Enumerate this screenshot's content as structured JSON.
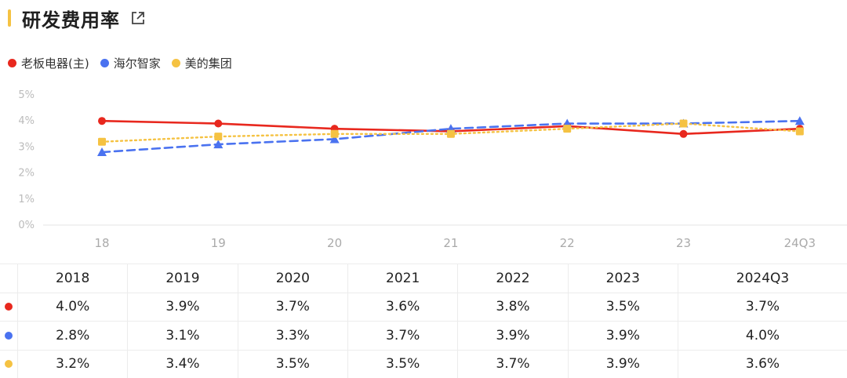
{
  "header": {
    "title": "研发费用率",
    "external_icon": "external-link-icon"
  },
  "legend": [
    {
      "label": "老板电器(主)",
      "color": "#e8281e"
    },
    {
      "label": "海尔智家",
      "color": "#4a72f0"
    },
    {
      "label": "美的集团",
      "color": "#f5c242"
    }
  ],
  "chart_data": {
    "type": "line",
    "x": [
      "18",
      "19",
      "20",
      "21",
      "22",
      "23",
      "24Q3"
    ],
    "y_ticks": [
      "0%",
      "1%",
      "2%",
      "3%",
      "4%",
      "5%"
    ],
    "ylim": [
      0,
      5
    ],
    "grid": false,
    "legend_position": "top-left",
    "series": [
      {
        "name": "老板电器(主)",
        "color": "#e8281e",
        "style": "solid",
        "marker": "circle",
        "values": [
          4.0,
          3.9,
          3.7,
          3.6,
          3.8,
          3.5,
          3.7
        ]
      },
      {
        "name": "海尔智家",
        "color": "#4a72f0",
        "style": "dashed",
        "marker": "triangle",
        "values": [
          2.8,
          3.1,
          3.3,
          3.7,
          3.9,
          3.9,
          4.0
        ]
      },
      {
        "name": "美的集团",
        "color": "#f5c242",
        "style": "dotted",
        "marker": "square",
        "values": [
          3.2,
          3.4,
          3.5,
          3.5,
          3.7,
          3.9,
          3.6
        ]
      }
    ]
  },
  "table": {
    "headers": [
      "2018",
      "2019",
      "2020",
      "2021",
      "2022",
      "2023",
      "2024Q3"
    ],
    "rows": [
      {
        "color": "#e8281e",
        "cells": [
          "4.0%",
          "3.9%",
          "3.7%",
          "3.6%",
          "3.8%",
          "3.5%",
          "3.7%"
        ]
      },
      {
        "color": "#4a72f0",
        "cells": [
          "2.8%",
          "3.1%",
          "3.3%",
          "3.7%",
          "3.9%",
          "3.9%",
          "4.0%"
        ]
      },
      {
        "color": "#f5c242",
        "cells": [
          "3.2%",
          "3.4%",
          "3.5%",
          "3.5%",
          "3.7%",
          "3.9%",
          "3.6%"
        ]
      }
    ]
  }
}
